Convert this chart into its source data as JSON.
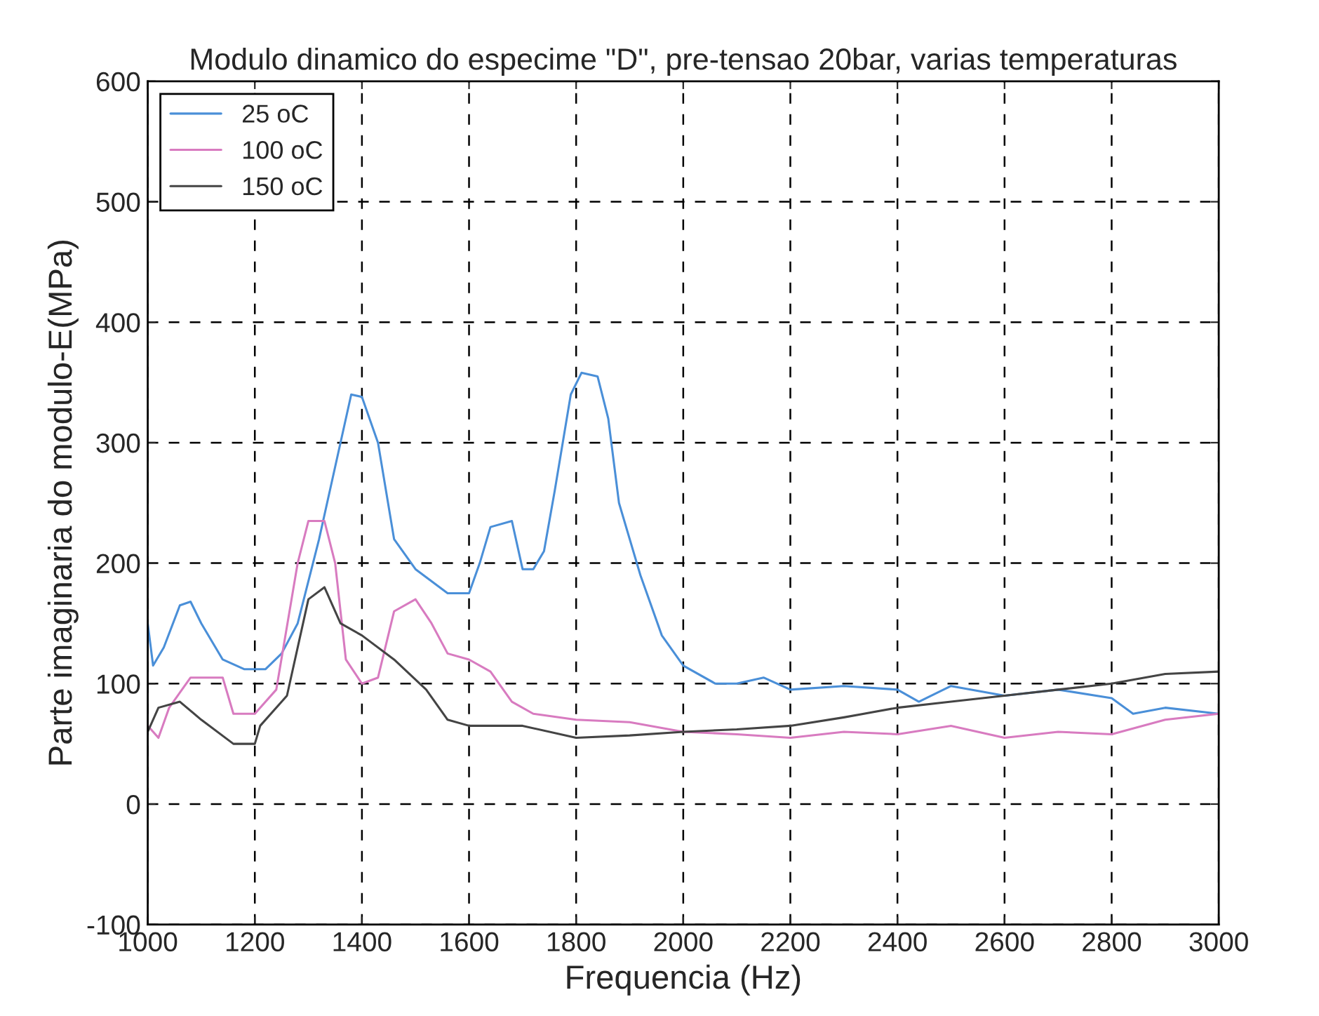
{
  "chart_data": {
    "type": "line",
    "title": "Modulo dinamico do especime \"D\", pre-tensao 20bar, varias temperaturas",
    "xlabel": "Frequencia (Hz)",
    "ylabel": "Parte imaginaria do modulo-E(MPa)",
    "xlim": [
      1000,
      3000
    ],
    "xticks": [
      1000,
      1200,
      1400,
      1600,
      1800,
      2000,
      2200,
      2400,
      2600,
      2800,
      3000
    ],
    "ylim": [
      -100,
      600
    ],
    "yticks": [
      -100,
      0,
      100,
      200,
      300,
      400,
      500,
      600
    ],
    "grid": true,
    "legend": "top left",
    "series": [
      {
        "name": "25 oC",
        "color": "#4a8fd8",
        "x": [
          1000,
          1010,
          1030,
          1060,
          1080,
          1100,
          1140,
          1180,
          1220,
          1250,
          1280,
          1320,
          1350,
          1380,
          1400,
          1430,
          1460,
          1500,
          1560,
          1600,
          1620,
          1640,
          1680,
          1700,
          1720,
          1740,
          1760,
          1790,
          1810,
          1840,
          1860,
          1880,
          1920,
          1960,
          2000,
          2060,
          2100,
          2150,
          2200,
          2300,
          2400,
          2440,
          2500,
          2600,
          2700,
          2800,
          2840,
          2900,
          3000
        ],
        "values": [
          150,
          115,
          130,
          165,
          168,
          150,
          120,
          112,
          112,
          125,
          150,
          220,
          280,
          340,
          338,
          300,
          220,
          195,
          175,
          175,
          200,
          230,
          235,
          195,
          195,
          210,
          260,
          340,
          358,
          355,
          320,
          250,
          190,
          140,
          115,
          100,
          100,
          105,
          95,
          98,
          95,
          85,
          98,
          90,
          95,
          88,
          75,
          80,
          75
        ]
      },
      {
        "name": "100 oC",
        "color": "#d87bc0",
        "x": [
          1000,
          1020,
          1040,
          1080,
          1140,
          1160,
          1200,
          1240,
          1280,
          1300,
          1330,
          1350,
          1370,
          1400,
          1430,
          1460,
          1500,
          1530,
          1560,
          1600,
          1640,
          1680,
          1720,
          1800,
          1900,
          2000,
          2100,
          2200,
          2300,
          2400,
          2500,
          2600,
          2700,
          2800,
          2900,
          3000
        ],
        "values": [
          65,
          55,
          80,
          105,
          105,
          75,
          75,
          95,
          200,
          235,
          235,
          200,
          120,
          100,
          105,
          160,
          170,
          150,
          125,
          120,
          110,
          85,
          75,
          70,
          68,
          60,
          58,
          55,
          60,
          58,
          65,
          55,
          60,
          58,
          70,
          75
        ]
      },
      {
        "name": "150 oC",
        "color": "#444444",
        "x": [
          1000,
          1020,
          1060,
          1100,
          1160,
          1200,
          1210,
          1260,
          1300,
          1330,
          1360,
          1400,
          1460,
          1520,
          1560,
          1600,
          1700,
          1800,
          1900,
          2000,
          2100,
          2200,
          2300,
          2400,
          2500,
          2600,
          2700,
          2800,
          2900,
          3000
        ],
        "values": [
          60,
          80,
          85,
          70,
          50,
          50,
          65,
          90,
          170,
          180,
          150,
          140,
          120,
          95,
          70,
          65,
          65,
          55,
          57,
          60,
          62,
          65,
          72,
          80,
          85,
          90,
          95,
          100,
          108,
          110
        ]
      }
    ]
  }
}
